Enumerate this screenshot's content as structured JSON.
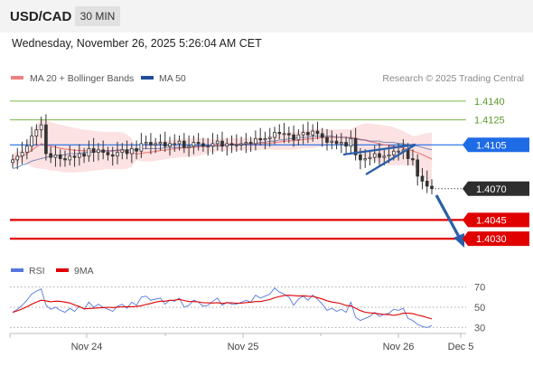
{
  "header": {
    "symbol": "USD/CAD",
    "timeframe": "30 MIN",
    "datetime": "Wednesday, November 26, 2025 5:26:04 AM CET"
  },
  "legend": {
    "ma20_label": "MA 20 + Bollinger Bands",
    "ma50_label": "MA 50",
    "credit": "Research © 2025 Trading Central",
    "ma20_color": "#f08080",
    "ma50_color": "#1f4e9c"
  },
  "rsi_legend": {
    "rsi_label": "RSI",
    "ma9_label": "9MA",
    "rsi_color": "#5577dd",
    "ma9_color": "#e00000"
  },
  "chart_data": [
    {
      "type": "line",
      "title": "",
      "price_range": [
        1.402,
        1.415
      ],
      "levels": [
        {
          "value": 1.414,
          "label": "1.4140",
          "kind": "resistance",
          "color": "#7ab648"
        },
        {
          "value": 1.4125,
          "label": "1.4125",
          "kind": "resistance",
          "color": "#7ab648"
        },
        {
          "value": 1.4105,
          "label": "1.4105",
          "kind": "pivot",
          "color": "#1e6be6"
        },
        {
          "value": 1.407,
          "label": "1.4070",
          "kind": "last",
          "color": "#333333"
        },
        {
          "value": 1.4045,
          "label": "1.4045",
          "kind": "support",
          "color": "#e00000"
        },
        {
          "value": 1.403,
          "label": "1.4030",
          "kind": "support",
          "color": "#e00000"
        }
      ],
      "x_labels": [
        "Nov 24",
        "Nov 25",
        "Nov 26",
        "Dec 5"
      ],
      "close": [
        1.4093,
        1.4096,
        1.4099,
        1.4104,
        1.4112,
        1.4117,
        1.4121,
        1.4098,
        1.4095,
        1.4097,
        1.4094,
        1.4093,
        1.4096,
        1.4095,
        1.4098,
        1.4096,
        1.4102,
        1.4099,
        1.4101,
        1.4099,
        1.4097,
        1.4096,
        1.4099,
        1.4101,
        1.4098,
        1.4102,
        1.41,
        1.4106,
        1.4107,
        1.4105,
        1.4106,
        1.4107,
        1.4104,
        1.4106,
        1.4106,
        1.4108,
        1.4103,
        1.4104,
        1.4107,
        1.4106,
        1.4104,
        1.4104,
        1.4106,
        1.4108,
        1.4104,
        1.4106,
        1.4105,
        1.4105,
        1.4106,
        1.4107,
        1.4106,
        1.411,
        1.4109,
        1.411,
        1.4111,
        1.4115,
        1.4114,
        1.4114,
        1.4113,
        1.4109,
        1.4113,
        1.4115,
        1.4113,
        1.4116,
        1.4114,
        1.4111,
        1.4107,
        1.4108,
        1.4106,
        1.4107,
        1.4104,
        1.411,
        1.4097,
        1.4093,
        1.4094,
        1.4095,
        1.4098,
        1.4095,
        1.4096,
        1.4097,
        1.41,
        1.41,
        1.4101,
        1.4094,
        1.4093,
        1.408,
        1.4076,
        1.4072,
        1.407
      ],
      "ma50": [
        1.4086,
        1.4087,
        1.4089,
        1.409,
        1.4092,
        1.4093,
        1.4094,
        1.4095,
        1.4096,
        1.4096,
        1.4097,
        1.4097,
        1.4098,
        1.4098,
        1.4098,
        1.4099,
        1.4099,
        1.4099,
        1.41,
        1.41,
        1.41,
        1.41,
        1.4101,
        1.4101,
        1.4101,
        1.4101,
        1.4101,
        1.4102,
        1.4102,
        1.4102,
        1.4102,
        1.4102,
        1.4103,
        1.4103,
        1.4103,
        1.4103,
        1.4103,
        1.4103,
        1.4104,
        1.4104,
        1.4104,
        1.4104,
        1.4104,
        1.4104,
        1.4104,
        1.4105,
        1.4105,
        1.4105,
        1.4105,
        1.4106,
        1.4106,
        1.4106,
        1.4107,
        1.4107,
        1.4108,
        1.4108,
        1.4109,
        1.4109,
        1.411,
        1.411,
        1.4111,
        1.4111,
        1.4111,
        1.4112,
        1.4112,
        1.4112,
        1.4112,
        1.4112,
        1.4111,
        1.4111,
        1.4111,
        1.411,
        1.411,
        1.4109,
        1.4109,
        1.4108,
        1.4108,
        1.4108,
        1.4107,
        1.4107,
        1.4107,
        1.4106,
        1.4106,
        1.4105,
        1.4105,
        1.4104,
        1.4103,
        1.4102,
        1.4101
      ],
      "rsi": [
        45,
        48,
        52,
        57,
        63,
        66,
        68,
        52,
        48,
        50,
        47,
        45,
        49,
        46,
        51,
        48,
        55,
        50,
        53,
        50,
        48,
        46,
        51,
        53,
        49,
        55,
        52,
        60,
        61,
        57,
        58,
        59,
        53,
        57,
        56,
        59,
        50,
        52,
        57,
        55,
        51,
        52,
        56,
        59,
        52,
        55,
        53,
        53,
        55,
        57,
        55,
        62,
        59,
        61,
        63,
        69,
        65,
        63,
        60,
        52,
        58,
        61,
        57,
        62,
        58,
        53,
        47,
        49,
        46,
        48,
        45,
        55,
        40,
        37,
        39,
        41,
        45,
        41,
        43,
        44,
        48,
        47,
        49,
        39,
        37,
        33,
        31,
        30,
        32
      ],
      "rsi_range": [
        25,
        75
      ],
      "rsi_levels": [
        70,
        50,
        30
      ]
    }
  ]
}
